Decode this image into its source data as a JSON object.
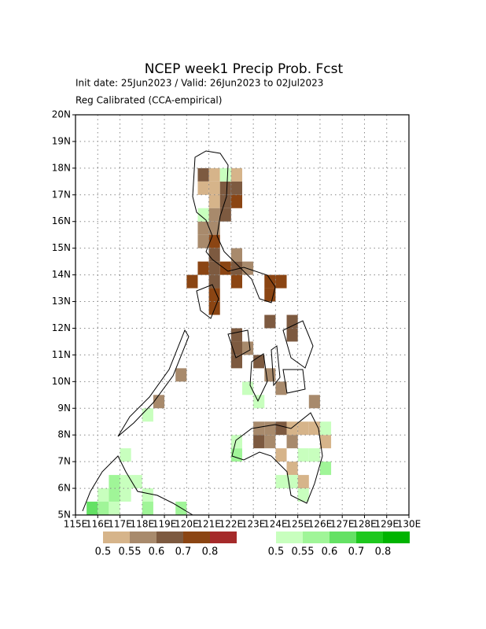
{
  "chart_data": {
    "type": "gridmap",
    "title": "NCEP week1 Precip Prob. Fcst",
    "subtitle": "Init date: 25Jun2023 / Valid: 26Jun2023 to 02Jul2023",
    "note": "Reg Calibrated (CCA-empirical)",
    "xlim": [
      115,
      130
    ],
    "ylim": [
      5,
      20
    ],
    "cell_size": 0.5,
    "grid": true,
    "xticks": [
      {
        "value": 115,
        "label": "115E"
      },
      {
        "value": 116,
        "label": "116E"
      },
      {
        "value": 117,
        "label": "117E"
      },
      {
        "value": 118,
        "label": "118E"
      },
      {
        "value": 119,
        "label": "119E"
      },
      {
        "value": 120,
        "label": "120E"
      },
      {
        "value": 121,
        "label": "121E"
      },
      {
        "value": 122,
        "label": "122E"
      },
      {
        "value": 123,
        "label": "123E"
      },
      {
        "value": 124,
        "label": "124E"
      },
      {
        "value": 125,
        "label": "125E"
      },
      {
        "value": 126,
        "label": "126E"
      },
      {
        "value": 127,
        "label": "127E"
      },
      {
        "value": 128,
        "label": "128E"
      },
      {
        "value": 129,
        "label": "129E"
      },
      {
        "value": 130,
        "label": "130E"
      }
    ],
    "yticks": [
      {
        "value": 5,
        "label": "5N"
      },
      {
        "value": 6,
        "label": "6N"
      },
      {
        "value": 7,
        "label": "7N"
      },
      {
        "value": 8,
        "label": "8N"
      },
      {
        "value": 9,
        "label": "9N"
      },
      {
        "value": 10,
        "label": "10N"
      },
      {
        "value": 11,
        "label": "11N"
      },
      {
        "value": 12,
        "label": "12N"
      },
      {
        "value": 13,
        "label": "13N"
      },
      {
        "value": 14,
        "label": "14N"
      },
      {
        "value": 15,
        "label": "15N"
      },
      {
        "value": 16,
        "label": "16N"
      },
      {
        "value": 17,
        "label": "17N"
      },
      {
        "value": 18,
        "label": "18N"
      },
      {
        "value": 19,
        "label": "19N"
      },
      {
        "value": 20,
        "label": "20N"
      }
    ],
    "dry": {
      "levels": [
        0.5,
        0.55,
        0.6,
        0.7,
        0.8
      ],
      "colors": [
        "#d6b48a",
        "#a88a6c",
        "#7d5a40",
        "#8b4513",
        "#a52a2a"
      ],
      "cells": [
        [
          120.5,
          17.5,
          0.6
        ],
        [
          121,
          17.5,
          0.5
        ],
        [
          122,
          17.5,
          0.5
        ],
        [
          120.5,
          17,
          0.5
        ],
        [
          121,
          17,
          0.5
        ],
        [
          121.5,
          17,
          0.6
        ],
        [
          122,
          17,
          0.6
        ],
        [
          121,
          16.5,
          0.5
        ],
        [
          121.5,
          16.5,
          0.6
        ],
        [
          122,
          16.5,
          0.7
        ],
        [
          121,
          16,
          0.55
        ],
        [
          121.5,
          16,
          0.6
        ],
        [
          120.5,
          15.5,
          0.55
        ],
        [
          121,
          15.5,
          0.55
        ],
        [
          120.5,
          15,
          0.55
        ],
        [
          121,
          15,
          0.7
        ],
        [
          121,
          14.5,
          0.6
        ],
        [
          122,
          14.5,
          0.55
        ],
        [
          120.5,
          14,
          0.7
        ],
        [
          121,
          14,
          0.6
        ],
        [
          121.5,
          14,
          0.7
        ],
        [
          122,
          14,
          0.6
        ],
        [
          122.5,
          14,
          0.55
        ],
        [
          120,
          13.5,
          0.7
        ],
        [
          121,
          13.5,
          0.6
        ],
        [
          122,
          13.5,
          0.7
        ],
        [
          123.5,
          13.5,
          0.7
        ],
        [
          124,
          13.5,
          0.7
        ],
        [
          123.5,
          13,
          0.7
        ],
        [
          121,
          13,
          0.7
        ],
        [
          121,
          12.5,
          0.7
        ],
        [
          123.5,
          12,
          0.6
        ],
        [
          124.5,
          12,
          0.6
        ],
        [
          124.5,
          11.5,
          0.6
        ],
        [
          122,
          11.5,
          0.6
        ],
        [
          122,
          11,
          0.6
        ],
        [
          122.5,
          11,
          0.55
        ],
        [
          122,
          10.5,
          0.6
        ],
        [
          123,
          10.5,
          0.6
        ],
        [
          123.5,
          10,
          0.55
        ],
        [
          124,
          9.5,
          0.55
        ],
        [
          119.5,
          10,
          0.55
        ],
        [
          118.5,
          9,
          0.55
        ],
        [
          125.5,
          9,
          0.55
        ],
        [
          123,
          8,
          0.55
        ],
        [
          123.5,
          8,
          0.55
        ],
        [
          124,
          8,
          0.6
        ],
        [
          124.5,
          8,
          0.5
        ],
        [
          125,
          8,
          0.5
        ],
        [
          125.5,
          8,
          0.5
        ],
        [
          123,
          7.5,
          0.6
        ],
        [
          123.5,
          7.5,
          0.55
        ],
        [
          124.5,
          7.5,
          0.55
        ],
        [
          126,
          7.5,
          0.5
        ],
        [
          124,
          7,
          0.5
        ],
        [
          124.5,
          6.5,
          0.5
        ],
        [
          125,
          6,
          0.5
        ]
      ]
    },
    "wet": {
      "levels": [
        0.5,
        0.55,
        0.6,
        0.7,
        0.8
      ],
      "colors": [
        "#c8ffbe",
        "#a0f598",
        "#64e164",
        "#1ec81e",
        "#00b400"
      ],
      "cells": [
        [
          121.5,
          17.5,
          0.5
        ],
        [
          120.5,
          16,
          0.5
        ],
        [
          122,
          7,
          0.55
        ],
        [
          122,
          7.5,
          0.5
        ],
        [
          117,
          7,
          0.5
        ],
        [
          116.5,
          6,
          0.55
        ],
        [
          117,
          6,
          0.5
        ],
        [
          117.5,
          6,
          0.5
        ],
        [
          116,
          5.5,
          0.5
        ],
        [
          116.5,
          5.5,
          0.55
        ],
        [
          117,
          5.5,
          0.5
        ],
        [
          118,
          5.5,
          0.5
        ],
        [
          115.5,
          5,
          0.6
        ],
        [
          116,
          5,
          0.55
        ],
        [
          116.5,
          5,
          0.5
        ],
        [
          118,
          5,
          0.55
        ],
        [
          124,
          6,
          0.5
        ],
        [
          124.5,
          6,
          0.5
        ],
        [
          125,
          7,
          0.5
        ],
        [
          125.5,
          7,
          0.5
        ],
        [
          126,
          6.5,
          0.55
        ],
        [
          125,
          5.5,
          0.5
        ],
        [
          126,
          8,
          0.5
        ],
        [
          123,
          9,
          0.5
        ],
        [
          122.5,
          9.5,
          0.5
        ],
        [
          118,
          8.5,
          0.5
        ],
        [
          119.5,
          5,
          0.55
        ]
      ]
    }
  }
}
